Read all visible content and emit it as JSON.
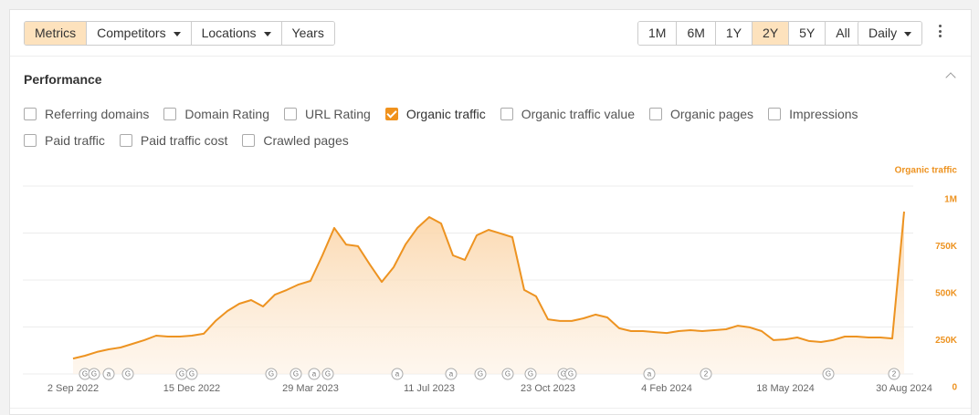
{
  "toolbar": {
    "left": [
      {
        "label": "Metrics",
        "active": true
      },
      {
        "label": "Competitors",
        "dropdown": true
      },
      {
        "label": "Locations",
        "dropdown": true
      },
      {
        "label": "Years"
      }
    ],
    "ranges": [
      {
        "label": "1M"
      },
      {
        "label": "6M"
      },
      {
        "label": "1Y"
      },
      {
        "label": "2Y",
        "active": true
      },
      {
        "label": "5Y"
      },
      {
        "label": "All"
      }
    ],
    "interval": {
      "label": "Daily",
      "dropdown": true
    }
  },
  "section": {
    "title": "Performance"
  },
  "checkboxes": [
    {
      "label": "Referring domains",
      "checked": false
    },
    {
      "label": "Domain Rating",
      "checked": false
    },
    {
      "label": "URL Rating",
      "checked": false
    },
    {
      "label": "Organic traffic",
      "checked": true
    },
    {
      "label": "Organic traffic value",
      "checked": false
    },
    {
      "label": "Organic pages",
      "checked": false
    },
    {
      "label": "Impressions",
      "checked": false
    },
    {
      "label": "Paid traffic",
      "checked": false
    },
    {
      "label": "Paid traffic cost",
      "checked": false
    },
    {
      "label": "Crawled pages",
      "checked": false
    }
  ],
  "chart_data": {
    "type": "area",
    "y_label": "Organic traffic",
    "categories": [
      "2 Sep 2022",
      null,
      null,
      null,
      null,
      null,
      null,
      null,
      null,
      null,
      "15 Dec 2022",
      null,
      null,
      null,
      null,
      null,
      null,
      null,
      null,
      null,
      "29 Mar 2023",
      null,
      null,
      null,
      null,
      null,
      null,
      null,
      null,
      null,
      "11 Jul 2023",
      null,
      null,
      null,
      null,
      null,
      null,
      null,
      null,
      null,
      "23 Oct 2023",
      null,
      null,
      null,
      null,
      null,
      null,
      null,
      null,
      null,
      "4 Feb 2024",
      null,
      null,
      null,
      null,
      null,
      null,
      null,
      null,
      null,
      "18 May 2024",
      null,
      null,
      null,
      null,
      null,
      null,
      null,
      null,
      null,
      "30 Aug 2024"
    ],
    "series": [
      {
        "name": "Organic traffic",
        "color": "#ed9321",
        "values": [
          82000,
          97000,
          117000,
          131000,
          141000,
          160000,
          180000,
          204000,
          199000,
          199000,
          204000,
          214000,
          282000,
          335000,
          374000,
          393000,
          359000,
          422000,
          447000,
          476000,
          495000,
          631000,
          777000,
          689000,
          680000,
          582000,
          490000,
          568000,
          689000,
          777000,
          835000,
          801000,
          631000,
          607000,
          738000,
          767000,
          748000,
          728000,
          447000,
          413000,
          291000,
          282000,
          282000,
          296000,
          316000,
          301000,
          243000,
          228000,
          228000,
          223000,
          218000,
          228000,
          233000,
          228000,
          233000,
          238000,
          257000,
          248000,
          228000,
          180000,
          184000,
          194000,
          175000,
          170000,
          180000,
          199000,
          199000,
          194000,
          194000,
          189000,
          864000
        ]
      }
    ],
    "ylim": [
      0,
      1000000
    ],
    "yticks": [
      0,
      {
        "value": 250000,
        "label": "250K"
      },
      {
        "value": 500000,
        "label": "500K"
      },
      {
        "value": 750000,
        "label": "750K"
      },
      {
        "value": 1000000,
        "label": "1M"
      }
    ],
    "grid": true,
    "event_markers": [
      "G",
      "G",
      "a",
      "G",
      "G",
      "G",
      "G",
      "G",
      "a",
      "G",
      "a",
      "a",
      "G",
      "G",
      "G",
      "G",
      "G",
      "a",
      "2",
      "G",
      "2"
    ]
  }
}
